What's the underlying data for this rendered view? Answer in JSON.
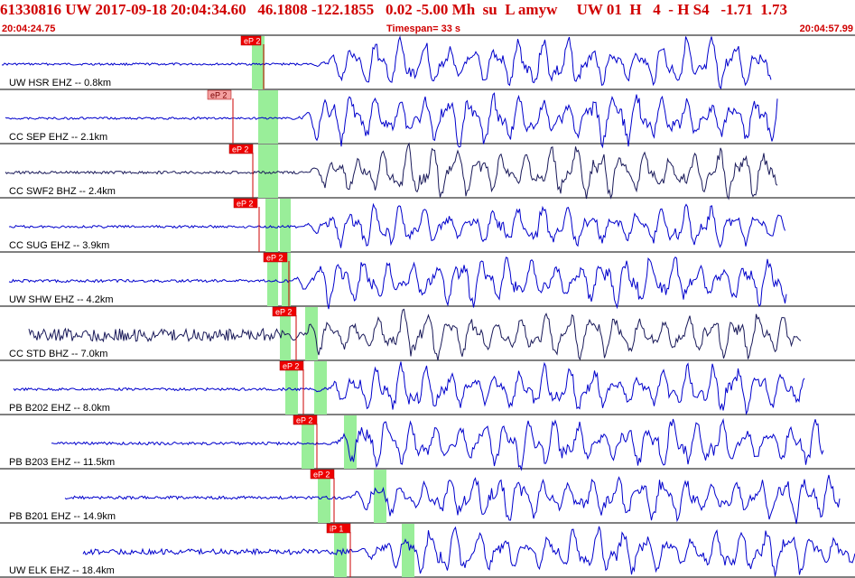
{
  "header": {
    "event_line": "61330816 UW 2017-09-18 20:04:34.60   46.1808 -122.1855   0.02 -5.00 Mh  su  L amyw     UW 01  H   4  - H S4   -1.71  1.73",
    "start_time": "20:04:24.75",
    "timespan": "Timespan=  33 s",
    "end_time": "20:04:57.99"
  },
  "colors": {
    "header_text": "#d00000",
    "trace_blue": "#0000cc",
    "trace_dark": "#1a1a5a",
    "pick_flag": "#ee0000",
    "pick_flag_alt": "#f4a0a0",
    "window_green": "#99ee99",
    "panel_border": "#000000"
  },
  "channels": [
    {
      "label": "UW HSR EHZ -- 0.8km",
      "pick": "eP 2",
      "pick_style": "solid",
      "color": "blue"
    },
    {
      "label": "CC SEP EHZ -- 2.1km",
      "pick": "eP 2",
      "pick_style": "light",
      "color": "blue"
    },
    {
      "label": "CC SWF2 BHZ -- 2.4km",
      "pick": "eP 2",
      "pick_style": "solid",
      "color": "dark"
    },
    {
      "label": "CC SUG EHZ -- 3.9km",
      "pick": "eP 2",
      "pick_style": "solid",
      "color": "blue"
    },
    {
      "label": "UW SHW EHZ -- 4.2km",
      "pick": "eP 2",
      "pick_style": "solid",
      "color": "blue"
    },
    {
      "label": "CC STD BHZ -- 7.0km",
      "pick": "eP 2",
      "pick_style": "solid",
      "color": "dark"
    },
    {
      "label": "PB B202 EHZ -- 8.0km",
      "pick": "eP 2",
      "pick_style": "solid",
      "color": "blue"
    },
    {
      "label": "PB B203 EHZ -- 11.5km",
      "pick": "eP 2",
      "pick_style": "solid",
      "color": "blue"
    },
    {
      "label": "PB B201 EHZ -- 14.9km",
      "pick": "eP 2",
      "pick_style": "solid",
      "color": "blue"
    },
    {
      "label": "UW ELK EHZ -- 18.4km",
      "pick": "iP 1",
      "pick_style": "solid",
      "color": "blue"
    }
  ]
}
